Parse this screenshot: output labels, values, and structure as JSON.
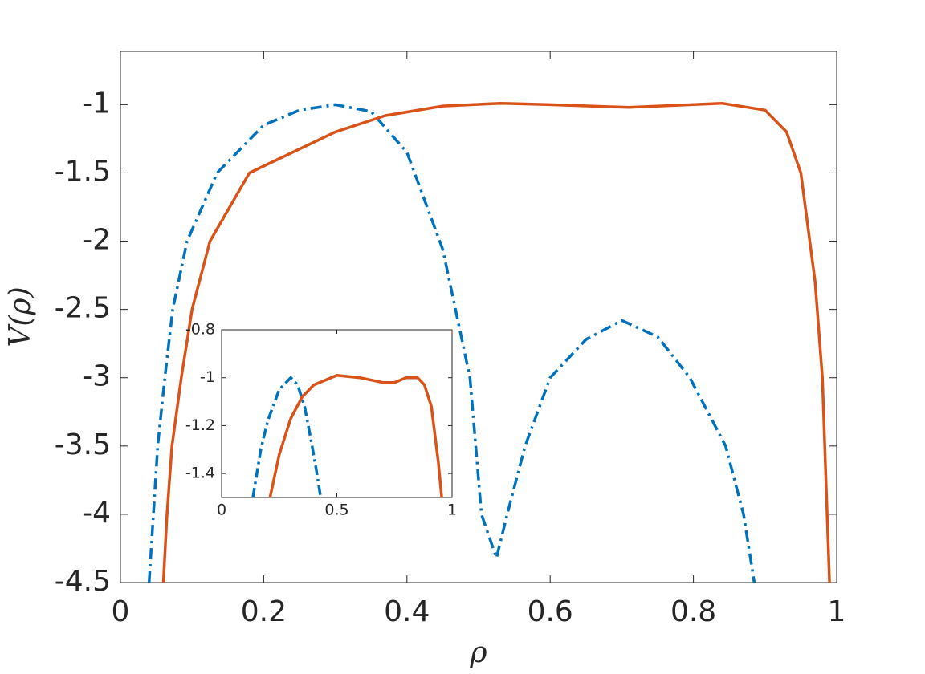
{
  "chart_data": [
    {
      "type": "line",
      "x_label": "ρ",
      "y_label": "V(ρ)",
      "xlim": [
        0,
        1
      ],
      "ylim": [
        -4.5,
        -0.61
      ],
      "xticks": [
        0,
        0.2,
        0.4,
        0.6,
        0.8,
        1
      ],
      "yticks": [
        -4.5,
        -4,
        -3.5,
        -3,
        -2.5,
        -2,
        -1.5,
        -1
      ],
      "series": [
        {
          "color": "#0072bd",
          "linestyle": "dash-dot",
          "x": [
            0.04,
            0.052,
            0.062,
            0.073,
            0.093,
            0.135,
            0.2,
            0.25,
            0.3,
            0.35,
            0.4,
            0.45,
            0.488,
            0.504,
            0.525,
            0.54,
            0.565,
            0.6,
            0.65,
            0.7,
            0.75,
            0.795,
            0.845,
            0.87,
            0.885
          ],
          "values": [
            -4.5,
            -3.5,
            -3,
            -2.5,
            -2,
            -1.5,
            -1.15,
            -1.04,
            -1,
            -1.05,
            -1.35,
            -2.06,
            -3,
            -4,
            -4.32,
            -4,
            -3.5,
            -3,
            -2.72,
            -2.58,
            -2.7,
            -3,
            -3.5,
            -4,
            -4.5
          ]
        },
        {
          "color": "#d95319",
          "linestyle": "solid",
          "x": [
            0.06,
            0.065,
            0.072,
            0.085,
            0.1,
            0.125,
            0.18,
            0.3,
            0.37,
            0.45,
            0.53,
            0.6,
            0.71,
            0.84,
            0.9,
            0.93,
            0.95,
            0.97,
            0.98,
            0.99
          ],
          "values": [
            -4.5,
            -4,
            -3.5,
            -3,
            -2.5,
            -2,
            -1.5,
            -1.2,
            -1.08,
            -1.01,
            -0.99,
            -1,
            -1.02,
            -0.99,
            -1.04,
            -1.2,
            -1.5,
            -2.3,
            -3,
            -4.5
          ]
        }
      ]
    },
    {
      "type": "line",
      "xlim": [
        0,
        1
      ],
      "ylim": [
        -1.5,
        -0.8
      ],
      "xticks": [
        0,
        0.5,
        1
      ],
      "yticks": [
        -1.4,
        -1.2,
        -1,
        -0.8
      ],
      "series": [
        {
          "color": "#0072bd",
          "linestyle": "dash-dot",
          "x": [
            0.136,
            0.17,
            0.2,
            0.25,
            0.3,
            0.33,
            0.36,
            0.39,
            0.41,
            0.43
          ],
          "values": [
            -1.5,
            -1.3,
            -1.18,
            -1.05,
            -1,
            -1.03,
            -1.12,
            -1.27,
            -1.38,
            -1.5
          ]
        },
        {
          "color": "#d95319",
          "linestyle": "solid",
          "x": [
            0.21,
            0.25,
            0.3,
            0.35,
            0.4,
            0.5,
            0.6,
            0.7,
            0.75,
            0.8,
            0.85,
            0.88,
            0.91,
            0.94,
            0.955
          ],
          "values": [
            -1.5,
            -1.32,
            -1.17,
            -1.08,
            -1.03,
            -0.99,
            -1,
            -1.02,
            -1.02,
            -1,
            -1,
            -1.03,
            -1.12,
            -1.35,
            -1.5
          ]
        }
      ]
    }
  ]
}
